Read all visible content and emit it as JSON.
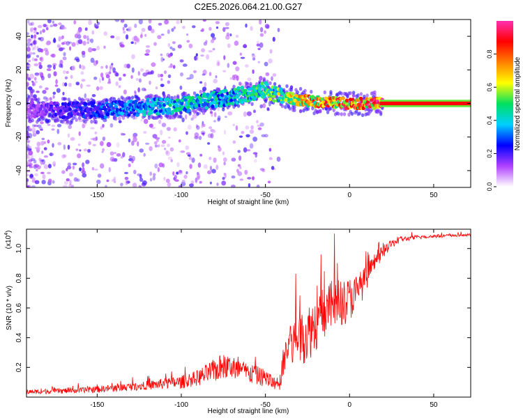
{
  "figure": {
    "title": "C2E5.2026.064.21.00.G27"
  },
  "chart_data": [
    {
      "type": "heatmap",
      "title": "C2E5.2026.064.21.00.G27",
      "xlabel": "Height of straight line (km)",
      "ylabel": "Frequency (Hz)",
      "xlim": [
        -192,
        72
      ],
      "ylim": [
        -50,
        50
      ],
      "xticks": [
        -150,
        -100,
        -50,
        0,
        50
      ],
      "yticks": [
        -40,
        -20,
        0,
        20,
        40
      ],
      "colorbar": {
        "label": "Normalized spectral amplitude",
        "range": [
          0,
          1
        ],
        "ticks": [
          "0.0",
          "0.2",
          "0.4",
          "0.6",
          "0.8"
        ],
        "tick_values": [
          0.0,
          0.2,
          0.4,
          0.6,
          0.8
        ],
        "colors": [
          "#ffffff",
          "#b040ff",
          "#0000ff",
          "#00d0ff",
          "#00e060",
          "#ffff00",
          "#ff8000",
          "#ff0000",
          "#ff30b0"
        ]
      },
      "ridge": {
        "description": "main spectral ridge (center frequency vs height)",
        "x": [
          -190,
          -150,
          -100,
          -75,
          -50,
          -45,
          -40,
          -30,
          -20,
          0,
          20,
          70
        ],
        "center_freq": [
          -4,
          -4,
          -1,
          3,
          8,
          6,
          4,
          2,
          1,
          0,
          0,
          0
        ],
        "amplitude": [
          0.15,
          0.3,
          0.45,
          0.45,
          0.5,
          0.55,
          0.6,
          0.7,
          0.8,
          0.85,
          0.95,
          0.95
        ]
      }
    },
    {
      "type": "line",
      "xlabel": "Height of straight line (km)",
      "ylabel": "SNR (10 * v/v)",
      "y_scale_label": "(x10",
      "y_scale_exp": "4",
      "y_scale_close": ")",
      "xlim": [
        -192,
        72
      ],
      "ylim": [
        0,
        11300
      ],
      "xticks": [
        -150,
        -100,
        -50,
        0,
        50
      ],
      "yticks": [
        0.2,
        0.4,
        0.6,
        0.8,
        1.0
      ],
      "ytick_labels": [
        "0.2",
        "0.4",
        "0.6",
        "0.8",
        "1.0"
      ],
      "color": "#ff0000",
      "series": [
        {
          "name": "SNR",
          "x": [
            -192,
            -160,
            -140,
            -120,
            -100,
            -90,
            -80,
            -75,
            -70,
            -60,
            -50,
            -42,
            -38,
            -35,
            -30,
            -25,
            -20,
            -15,
            -10,
            -5,
            0,
            5,
            10,
            15,
            20,
            25,
            30,
            40,
            50,
            60,
            72
          ],
          "values": [
            350,
            450,
            600,
            800,
            1000,
            1300,
            1800,
            2100,
            2000,
            1600,
            1300,
            700,
            3000,
            3500,
            4000,
            4300,
            5000,
            5700,
            6200,
            6300,
            6600,
            7100,
            8000,
            9100,
            9800,
            10300,
            10600,
            10750,
            10830,
            10870,
            10900
          ],
          "noise": [
            150,
            200,
            250,
            300,
            450,
            550,
            800,
            900,
            800,
            700,
            600,
            400,
            1500,
            1700,
            1800,
            2000,
            1900,
            1800,
            1700,
            1600,
            1500,
            1200,
            900,
            600,
            400,
            300,
            200,
            150,
            120,
            100,
            100
          ],
          "notable_peaks": [
            {
              "x": -32,
              "y": 8300
            },
            {
              "x": -9,
              "y": 11000
            },
            {
              "x": -17,
              "y": 9600
            }
          ]
        }
      ]
    }
  ]
}
